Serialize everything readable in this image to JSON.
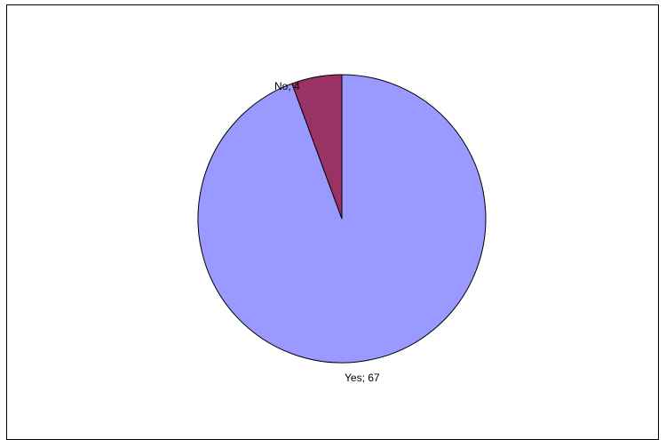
{
  "chart_data": {
    "type": "pie",
    "title": "",
    "slices": [
      {
        "label": "Yes",
        "value": 67,
        "display": "Yes; 67",
        "color": "#9999ff"
      },
      {
        "label": "No",
        "value": 4,
        "display": "No; 4",
        "color": "#993366"
      }
    ],
    "legend": "none",
    "border_color": "#000000"
  }
}
